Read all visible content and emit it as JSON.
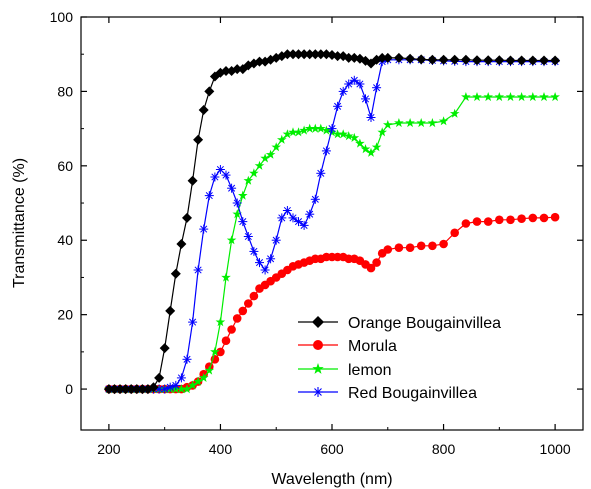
{
  "chart_data": {
    "type": "line",
    "xlabel": "Wavelength (nm)",
    "ylabel": "Transmittance (%)",
    "xlim": [
      150,
      1050
    ],
    "ylim": [
      -11,
      100
    ],
    "xticks": [
      200,
      400,
      600,
      800,
      1000
    ],
    "xtick_labels": [
      "200",
      "400",
      "600",
      "800",
      "1000"
    ],
    "yticks": [
      0,
      20,
      40,
      60,
      80,
      100
    ],
    "ytick_labels": [
      "0",
      "20",
      "40",
      "60",
      "80",
      "100"
    ],
    "grid": false,
    "legend_position": "bottom-right",
    "series": [
      {
        "name": "Orange Bougainvillea",
        "color": "#000000",
        "marker": "diamond",
        "x": [
          200,
          210,
          220,
          230,
          240,
          250,
          260,
          270,
          280,
          290,
          300,
          310,
          320,
          330,
          340,
          350,
          360,
          370,
          380,
          390,
          400,
          410,
          420,
          430,
          440,
          450,
          460,
          470,
          480,
          490,
          500,
          510,
          520,
          530,
          540,
          550,
          560,
          570,
          580,
          590,
          600,
          610,
          620,
          630,
          640,
          650,
          660,
          670,
          680,
          690,
          700,
          720,
          740,
          760,
          780,
          800,
          820,
          840,
          860,
          880,
          900,
          920,
          940,
          960,
          980,
          1000
        ],
        "y": [
          0,
          0,
          0,
          0,
          0,
          0,
          0,
          0,
          0.5,
          3,
          11,
          21,
          31,
          39,
          46,
          56,
          67,
          75,
          80,
          84,
          85,
          85.5,
          85.5,
          86,
          86,
          87,
          87.5,
          88,
          88,
          88.5,
          89,
          89.5,
          90,
          90,
          90,
          90,
          90,
          90,
          90,
          90,
          89.8,
          89.5,
          89.5,
          89,
          89,
          88.8,
          88.2,
          87.5,
          88.5,
          89,
          89,
          89,
          88.8,
          88.6,
          88.5,
          88.5,
          88.5,
          88.5,
          88.4,
          88.4,
          88.4,
          88.3,
          88.3,
          88.3,
          88.3,
          88.3
        ]
      },
      {
        "name": "Morula",
        "color": "#ff0000",
        "marker": "circle",
        "x": [
          200,
          210,
          220,
          230,
          240,
          250,
          260,
          270,
          280,
          290,
          300,
          310,
          320,
          330,
          340,
          350,
          360,
          370,
          380,
          390,
          400,
          410,
          420,
          430,
          440,
          450,
          460,
          470,
          480,
          490,
          500,
          510,
          520,
          530,
          540,
          550,
          560,
          570,
          580,
          590,
          600,
          610,
          620,
          630,
          640,
          650,
          660,
          670,
          680,
          690,
          700,
          720,
          740,
          760,
          780,
          800,
          820,
          840,
          860,
          880,
          900,
          920,
          940,
          960,
          980,
          1000
        ],
        "y": [
          0,
          0,
          0,
          0,
          0,
          0,
          0,
          0,
          0,
          0,
          0,
          0,
          0,
          0,
          0.5,
          1,
          2,
          4,
          6,
          8,
          10,
          13,
          16,
          19,
          21,
          23,
          25,
          27,
          28,
          29,
          30,
          31,
          32,
          33,
          33.5,
          34,
          34.5,
          35,
          35,
          35.5,
          35.5,
          35.5,
          35.5,
          35,
          35,
          34.5,
          33.5,
          32.5,
          34,
          36.5,
          37.5,
          38,
          38,
          38.5,
          38.5,
          39,
          42,
          44.5,
          45,
          45,
          45.5,
          45.5,
          45.8,
          46,
          46,
          46.2
        ]
      },
      {
        "name": "lemon",
        "color": "#00ee00",
        "marker": "star",
        "x": [
          200,
          210,
          220,
          230,
          240,
          250,
          260,
          270,
          280,
          290,
          300,
          310,
          320,
          330,
          340,
          350,
          360,
          370,
          380,
          390,
          400,
          410,
          420,
          430,
          440,
          450,
          460,
          470,
          480,
          490,
          500,
          510,
          520,
          530,
          540,
          550,
          560,
          570,
          580,
          590,
          600,
          610,
          620,
          630,
          640,
          650,
          660,
          670,
          680,
          690,
          700,
          720,
          740,
          760,
          780,
          800,
          820,
          840,
          860,
          880,
          900,
          920,
          940,
          960,
          980,
          1000
        ],
        "y": [
          0,
          0,
          0,
          0,
          0,
          0,
          0,
          0,
          0,
          0,
          0,
          0,
          0,
          0,
          0,
          1,
          2,
          3,
          5,
          10,
          18,
          30,
          40,
          47,
          52,
          56,
          58,
          60,
          62,
          63,
          65,
          67,
          68.5,
          69,
          69,
          69.5,
          70,
          70,
          70,
          69.5,
          69,
          68.5,
          68.5,
          68,
          67.5,
          66,
          64.5,
          63.5,
          65,
          69,
          71,
          71.5,
          71.5,
          71.5,
          71.5,
          72,
          74,
          78.5,
          78.5,
          78.5,
          78.5,
          78.5,
          78.5,
          78.5,
          78.5,
          78.5
        ]
      },
      {
        "name": "Red Bougainvillea",
        "color": "#0000ff",
        "marker": "asterisk",
        "x": [
          200,
          210,
          220,
          230,
          240,
          250,
          260,
          270,
          280,
          290,
          300,
          310,
          320,
          330,
          340,
          350,
          360,
          370,
          380,
          390,
          400,
          410,
          420,
          430,
          440,
          450,
          460,
          470,
          480,
          490,
          500,
          510,
          520,
          530,
          540,
          550,
          560,
          570,
          580,
          590,
          600,
          610,
          620,
          630,
          640,
          650,
          660,
          670,
          680,
          690,
          700,
          720,
          740,
          760,
          780,
          800,
          820,
          840,
          860,
          880,
          900,
          920,
          940,
          960,
          980,
          1000
        ],
        "y": [
          0,
          0,
          0,
          0,
          0,
          0,
          0,
          0,
          0,
          0,
          0,
          0.5,
          1,
          3,
          8,
          18,
          32,
          43,
          52,
          57,
          59,
          57.5,
          54,
          50,
          45,
          41,
          37,
          34,
          32,
          35,
          40,
          46,
          48,
          46,
          45,
          44,
          47,
          51,
          58,
          64,
          70,
          76,
          80,
          82,
          83,
          82,
          78,
          73,
          81,
          88,
          88.5,
          88.5,
          88.5,
          88.5,
          88.3,
          88.2,
          88.1,
          88,
          88,
          88,
          88,
          88,
          88,
          88,
          88,
          88
        ]
      }
    ]
  }
}
